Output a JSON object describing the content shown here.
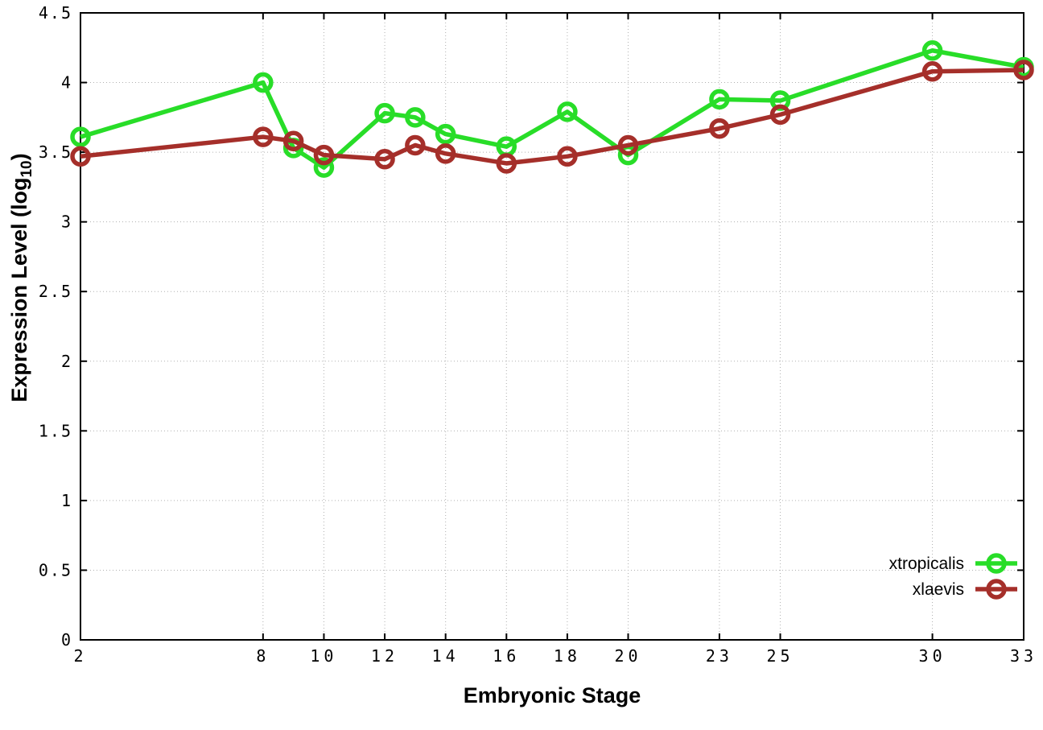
{
  "chart_data": {
    "type": "line",
    "x": [
      2,
      8,
      9,
      10,
      12,
      13,
      14,
      16,
      18,
      20,
      23,
      25,
      30,
      33
    ],
    "series": [
      {
        "name": "xtropicalis",
        "color": "#28dd28",
        "values": [
          3.61,
          4.0,
          3.53,
          3.39,
          3.78,
          3.75,
          3.63,
          3.54,
          3.79,
          3.48,
          3.88,
          3.87,
          4.23,
          4.11
        ]
      },
      {
        "name": "xlaevis",
        "color": "#a52f2a",
        "values": [
          3.47,
          3.61,
          3.58,
          3.48,
          3.45,
          3.55,
          3.49,
          3.42,
          3.47,
          3.55,
          3.67,
          3.77,
          4.08,
          4.09
        ]
      }
    ],
    "title": "",
    "xlabel": "Embryonic Stage",
    "ylabel_prefix": "Expression Level (log",
    "ylabel_sub": "10",
    "ylabel_suffix": ")",
    "xlim": [
      2,
      33
    ],
    "ylim": [
      0,
      4.5
    ],
    "x_ticks": [
      2,
      8,
      10,
      12,
      14,
      16,
      18,
      20,
      23,
      25,
      30,
      33
    ],
    "x_tick_labels": [
      "2",
      "8",
      "10",
      "12",
      "14",
      "16",
      "18",
      "20",
      "23",
      "25",
      "30",
      "33"
    ],
    "y_ticks": [
      0,
      0.5,
      1,
      1.5,
      2,
      2.5,
      3,
      3.5,
      4,
      4.5
    ],
    "y_tick_labels": [
      "0",
      "0.5",
      "1",
      "1.5",
      "2",
      "2.5",
      "3",
      "3.5",
      "4",
      "4.5"
    ],
    "grid": true,
    "legend_position": "bottom-right",
    "legend": [
      "xtropicalis",
      "xlaevis"
    ]
  },
  "colors": {
    "background": "#ffffff",
    "grid": "#b0b0b0",
    "axis": "#000000",
    "text": "#000000"
  }
}
